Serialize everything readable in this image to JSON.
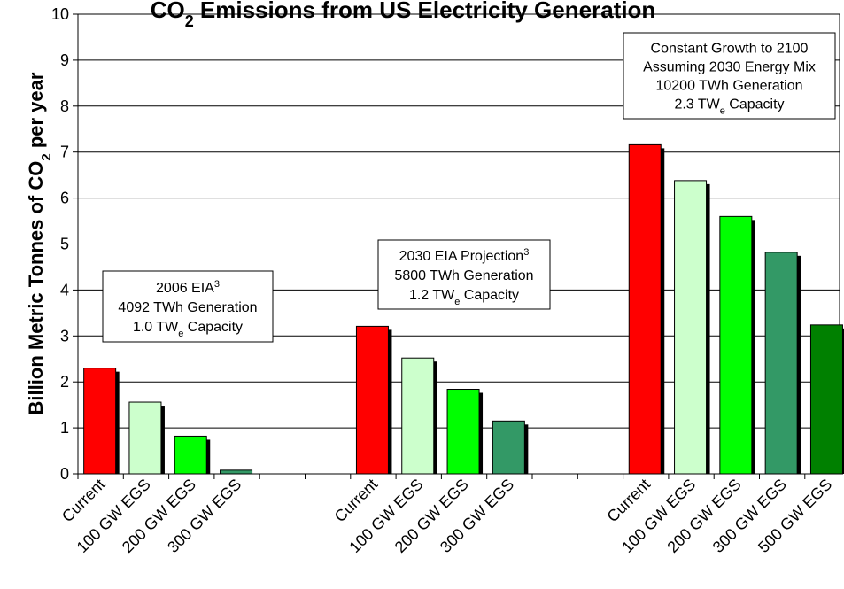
{
  "chart_data": {
    "type": "bar",
    "title": {
      "main": "CO",
      "sub": "2",
      "rest": " Emissions from US Electricity Generation"
    },
    "ylabel": {
      "main": "Billion Metric Tonnes of CO",
      "sub": "2",
      "rest": " per year"
    },
    "ylim": [
      0,
      10
    ],
    "yticks": [
      "0",
      "1",
      "2",
      "3",
      "4",
      "5",
      "6",
      "7",
      "8",
      "9",
      "10"
    ],
    "grid": true,
    "colors": {
      "Current": "#ff0000",
      "100 GW EGS": "#ccffcc",
      "200 GW EGS": "#00ff00",
      "300 GW EGS": "#339966",
      "500 GW EGS": "#008000"
    },
    "groups": [
      {
        "categories": [
          "Current",
          "100 GW EGS",
          "200 GW EGS",
          "300 GW EGS"
        ],
        "values": [
          2.3,
          1.56,
          0.82,
          0.08
        ],
        "annotation": [
          {
            "text": "2006 EIA",
            "sup": "3"
          },
          {
            "text": "4092 TWh Generation"
          },
          {
            "text": "1.0 TW",
            "sub": "e",
            "rest": " Capacity"
          }
        ]
      },
      {
        "categories": [
          "Current",
          "100 GW EGS",
          "200 GW EGS",
          "300 GW EGS"
        ],
        "values": [
          3.21,
          2.52,
          1.84,
          1.15
        ],
        "annotation": [
          {
            "text": "2030 EIA Projection",
            "sup": "3"
          },
          {
            "text": "5800 TWh Generation"
          },
          {
            "text": "1.2 TW",
            "sub": "e",
            "rest": " Capacity"
          }
        ]
      },
      {
        "categories": [
          "Current",
          "100 GW EGS",
          "200 GW EGS",
          "300 GW EGS",
          "500 GW EGS"
        ],
        "values": [
          7.16,
          6.38,
          5.6,
          4.82,
          3.24
        ],
        "annotation": [
          {
            "text": "Constant Growth to 2100"
          },
          {
            "text": "Assuming 2030 Energy Mix"
          },
          {
            "text": "10200 TWh Generation"
          },
          {
            "text": "2.3 TW",
            "sub": "e",
            "rest": " Capacity"
          }
        ]
      }
    ]
  }
}
